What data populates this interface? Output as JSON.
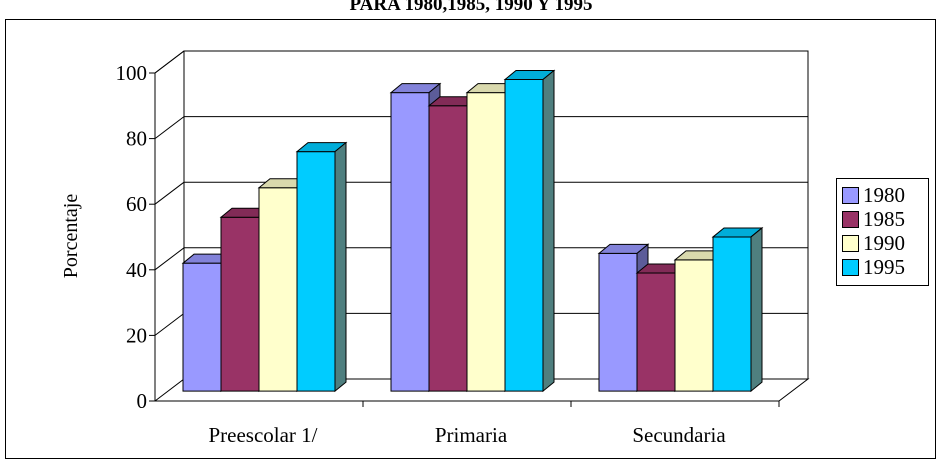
{
  "chart_data": {
    "type": "bar",
    "title": "PARA 1980,1985, 1990 Y 1995",
    "xlabel": "",
    "ylabel": "Porcentaje",
    "ylim": [
      0,
      100
    ],
    "yticks": [
      "0",
      "20",
      "40",
      "60",
      "80",
      "100"
    ],
    "categories": [
      "Preescolar  1/",
      "Primaria",
      "Secundaria"
    ],
    "series": [
      {
        "name": "1980",
        "values": [
          39,
          91,
          42
        ],
        "color": "#9999ff"
      },
      {
        "name": "1985",
        "values": [
          53,
          87,
          36
        ],
        "color": "#993366"
      },
      {
        "name": "1990",
        "values": [
          62,
          91,
          40
        ],
        "color": "#ffffcc"
      },
      {
        "name": "1995",
        "values": [
          73,
          95,
          47
        ],
        "color": "#00ccff"
      }
    ],
    "grid": true,
    "legend_position": "right",
    "style": "3d-clustered-column"
  }
}
